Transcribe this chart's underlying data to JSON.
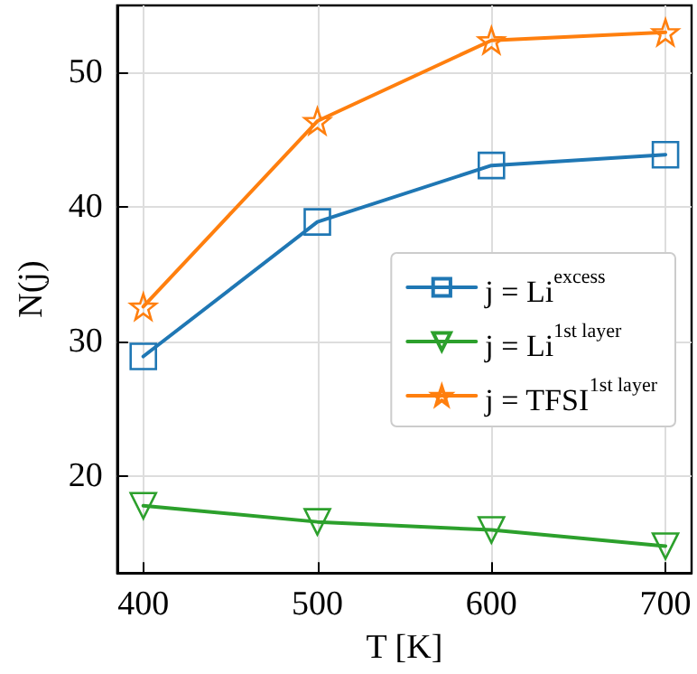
{
  "chart_data": {
    "type": "line",
    "xlabel": "T [K]",
    "ylabel": "N(j)",
    "x": [
      400,
      500,
      600,
      700
    ],
    "series": [
      {
        "name": "j = Li$^{excess}$",
        "color": "#1f77b4",
        "marker": "square",
        "values": [
          28.9,
          38.9,
          43.1,
          43.9
        ]
      },
      {
        "name": "j = Li$^{1st layer}$",
        "color": "#2ca02c",
        "marker": "triangle",
        "values": [
          17.8,
          16.6,
          16.0,
          14.8
        ]
      },
      {
        "name": "j = TFSI$^{1st layer}$",
        "color": "#ff7f0e",
        "marker": "star",
        "values": [
          32.6,
          46.4,
          52.4,
          53.0
        ]
      }
    ],
    "xlim": [
      385,
      715
    ],
    "xticks": [
      400,
      500,
      600,
      700
    ],
    "ylim": [
      12.8,
      55
    ],
    "yticks": [
      20,
      30,
      40,
      50
    ],
    "grid": true,
    "legend": "right",
    "line_style": "solid"
  }
}
